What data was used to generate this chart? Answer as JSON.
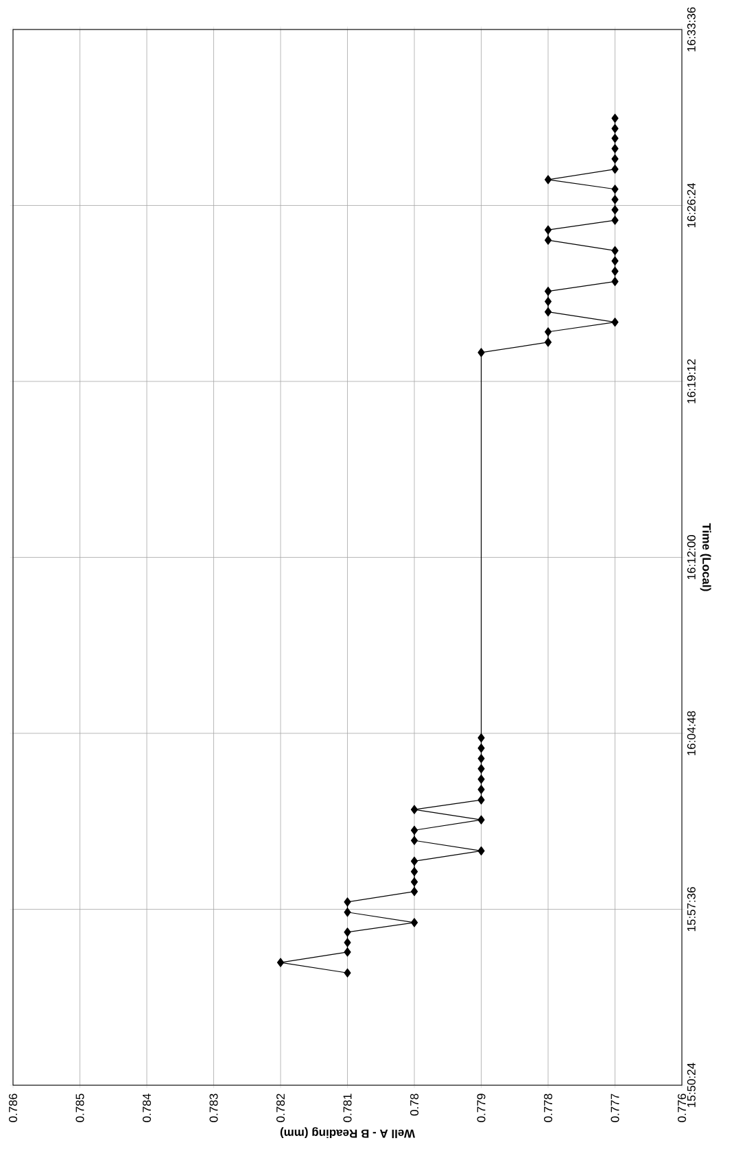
{
  "chart_data": {
    "type": "line",
    "xlabel": "Well A - B Reading (mm)",
    "ylabel": "Time (Local)",
    "x": [
      0.781,
      0.782,
      0.781,
      0.781,
      0.781,
      0.78,
      0.781,
      0.781,
      0.78,
      0.78,
      0.78,
      0.78,
      0.779,
      0.78,
      0.78,
      0.779,
      0.78,
      0.779,
      0.779,
      0.779,
      0.779,
      0.779,
      0.779,
      0.779,
      0.779,
      0.778,
      0.778,
      0.777,
      0.778,
      0.778,
      0.778,
      0.777,
      0.777,
      0.777,
      0.777,
      0.778,
      0.778,
      0.777,
      0.777,
      0.777,
      0.777,
      0.778,
      0.777,
      0.777,
      0.777,
      0.777,
      0.777,
      0.777
    ],
    "values": [
      15.9166,
      15.9237,
      15.9308,
      15.9373,
      15.9444,
      15.9509,
      15.958,
      15.965,
      15.9721,
      15.9787,
      15.9857,
      15.9928,
      15.9998,
      16.0069,
      16.0139,
      16.021,
      16.028,
      16.0346,
      16.0417,
      16.0487,
      16.0558,
      16.0628,
      16.0699,
      16.0769,
      16.3397,
      16.3467,
      16.3538,
      16.3604,
      16.3674,
      16.3745,
      16.3815,
      16.3881,
      16.3951,
      16.4022,
      16.4092,
      16.4163,
      16.4233,
      16.4299,
      16.437,
      16.444,
      16.4511,
      16.4576,
      16.4647,
      16.4717,
      16.4788,
      16.4858,
      16.4924,
      16.4995
    ],
    "color": "#000000",
    "marker": "diamond",
    "line_style": "solid",
    "grid": true,
    "ylim": [
      15.84,
      16.56
    ],
    "yticks": [
      {
        "value": 15.84,
        "label": "15:50:24"
      },
      {
        "value": 15.96,
        "label": "15:57:36"
      },
      {
        "value": 16.08,
        "label": "16:04:48"
      },
      {
        "value": 16.2,
        "label": "16:12:00"
      },
      {
        "value": 16.32,
        "label": "16:19:12"
      },
      {
        "value": 16.44,
        "label": "16:26:24"
      },
      {
        "value": 16.56,
        "label": "16:33:36"
      }
    ],
    "xlim": [
      0.786,
      0.776
    ],
    "xticks": [
      0.786,
      0.785,
      0.784,
      0.783,
      0.782,
      0.781,
      0.78,
      0.779,
      0.778,
      0.777,
      0.776
    ]
  }
}
